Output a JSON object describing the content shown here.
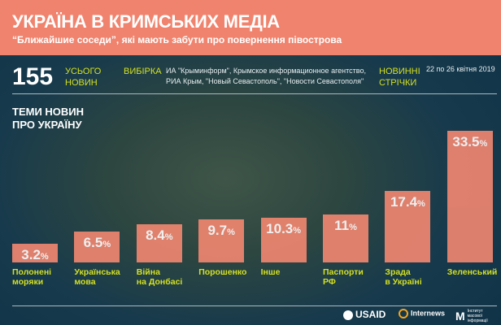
{
  "header": {
    "title": "УКРАЇНА В КРИМСЬКИХ МЕДІА",
    "subtitle": "“Ближайшие соседи”, які мають забути про повернення півострова"
  },
  "stats": {
    "count": "155",
    "count_label_1": "УСЬОГО",
    "count_label_2": "НОВИН",
    "sample_label": "ВИБІРКА",
    "sample_line_1": "ИА \"Крыминформ\", Крымское информационное агентство,",
    "sample_line_2": "РИА Крым, \"Новый Севастополь\", \"Новости Севастополя\"",
    "feeds_label_1": "НОВИННІ",
    "feeds_label_2": "СТРІЧКИ",
    "dates": "22 по 26 квітня 2019"
  },
  "chart_data": {
    "type": "bar",
    "title": "ТЕМИ НОВИН ПРО УКРАЇНУ",
    "title_line_1": "ТЕМИ НОВИН",
    "title_line_2": "ПРО УКРАЇНУ",
    "categories": [
      "Полонені моряки",
      "Українська мова",
      "Війна на Донбасі",
      "Порошенко",
      "Інше",
      "Паспорти РФ",
      "Зрада в Україні",
      "Зеленський"
    ],
    "label_lines": [
      [
        "Полонені",
        "моряки"
      ],
      [
        "Українська",
        "мова"
      ],
      [
        "Війна",
        "на Донбасі"
      ],
      [
        "Порошенко",
        ""
      ],
      [
        "Інше",
        ""
      ],
      [
        "Паспорти",
        "РФ"
      ],
      [
        "Зрада",
        "в Україні"
      ],
      [
        "Зеленський",
        ""
      ]
    ],
    "values": [
      3.2,
      6.5,
      8.4,
      9.7,
      10.3,
      11,
      17.4,
      33.5
    ],
    "value_labels": [
      "3.2",
      "6.5",
      "8.4",
      "9.7",
      "10.3",
      "11",
      "17.4",
      "33.5"
    ],
    "unit": "%",
    "ylim": [
      0,
      35
    ]
  },
  "footer": {
    "logo_1": "USAID",
    "logo_2": "Internews",
    "logo_3": "Інститут масової інформації"
  },
  "colors": {
    "accent": "#f0836d",
    "label": "#d4e021"
  }
}
